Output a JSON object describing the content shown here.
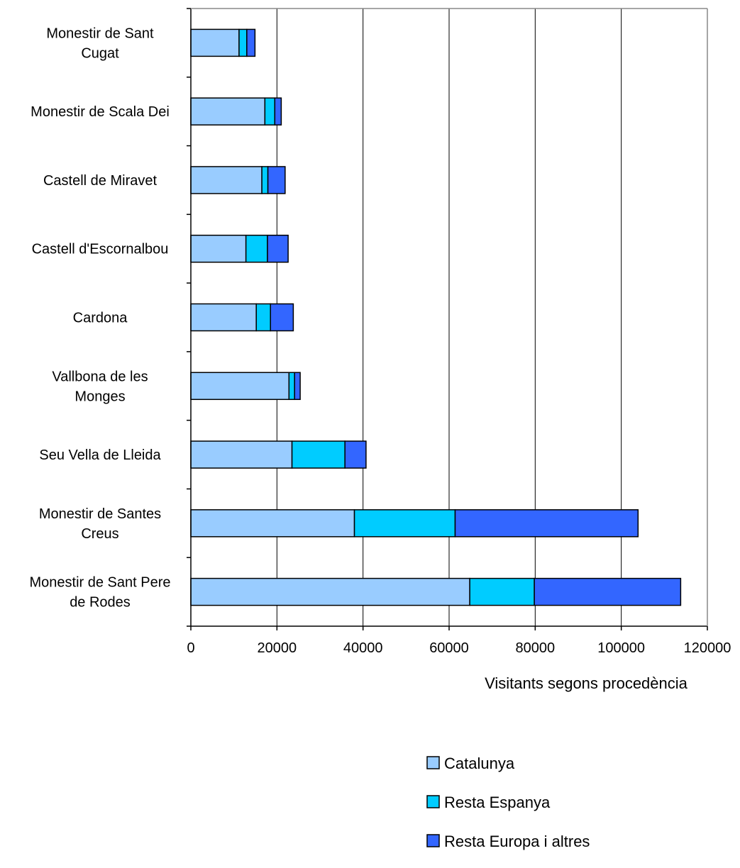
{
  "chart_data": {
    "type": "bar",
    "orientation": "horizontal",
    "stacked": true,
    "categories": [
      [
        "Monestir de Sant",
        "Cugat"
      ],
      [
        "Monestir de Scala Dei"
      ],
      [
        "Castell de Miravet"
      ],
      [
        "Castell d'Escornalbou"
      ],
      [
        "Cardona"
      ],
      [
        "Vallbona de les",
        "Monges"
      ],
      [
        "Seu Vella de Lleida"
      ],
      [
        "Monestir de Santes",
        "Creus"
      ],
      [
        "Monestir de Sant Pere",
        "de Rodes"
      ]
    ],
    "series": [
      {
        "name": "Catalunya",
        "color": "#99ccff",
        "values": [
          11200,
          17200,
          16500,
          12800,
          15200,
          22800,
          23500,
          38000,
          64800
        ]
      },
      {
        "name": "Resta Espanya",
        "color": "#00ccff",
        "values": [
          1800,
          2300,
          1400,
          5000,
          3300,
          1300,
          12300,
          23400,
          15000
        ]
      },
      {
        "name": "Resta Europa i altres",
        "color": "#3366ff",
        "values": [
          1900,
          1500,
          4000,
          4800,
          5300,
          1300,
          4900,
          42500,
          34000
        ]
      }
    ],
    "xlabel": "Visitants segons procedència",
    "ylabel": "",
    "xlim": [
      0,
      120000
    ],
    "x_ticks": [
      "0",
      "20000",
      "40000",
      "60000",
      "80000",
      "100000",
      "120000"
    ],
    "grid": "vertical",
    "legend_position": "bottom-right"
  }
}
